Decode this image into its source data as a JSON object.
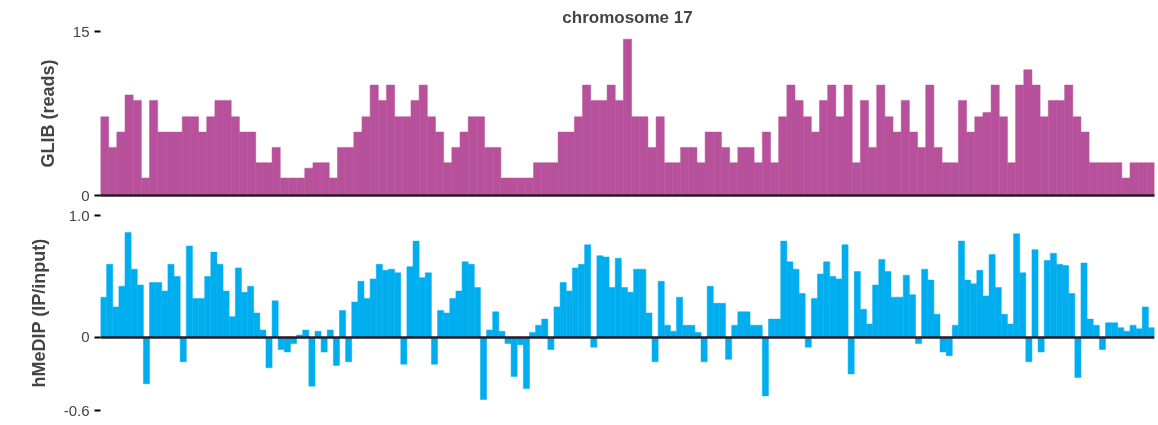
{
  "chart_data": [
    {
      "type": "bar",
      "title": "chromosome 17",
      "ylabel": "GLIB (reads)",
      "ylim": [
        0,
        15
      ],
      "yticks": [
        0,
        15
      ],
      "tick_labels": "y",
      "grid": false,
      "categories": [
        null,
        null,
        null,
        null,
        null,
        null,
        null,
        null,
        null,
        null,
        null,
        null,
        null,
        null,
        null,
        null,
        null,
        null,
        null,
        null,
        null,
        null,
        null,
        null,
        null,
        null,
        null,
        null,
        null,
        null,
        null,
        null,
        null,
        null,
        null,
        null,
        null,
        null,
        null,
        null,
        null,
        null,
        null,
        null,
        null,
        null,
        null,
        null,
        null,
        null,
        null,
        null,
        null,
        null,
        null,
        null,
        null,
        null,
        null,
        null,
        null,
        null,
        null,
        null,
        null,
        null,
        null,
        null,
        null,
        null,
        null,
        null,
        null,
        null,
        null,
        null,
        null,
        null,
        null,
        null,
        null,
        null,
        null,
        null,
        null,
        null,
        null,
        null,
        null,
        null,
        null,
        null,
        null,
        null,
        null,
        null,
        null,
        null,
        null,
        null,
        null,
        null,
        null,
        null,
        null,
        null,
        null,
        null,
        null,
        null,
        null,
        null,
        null,
        null,
        null,
        null,
        null,
        null,
        null,
        null,
        null,
        null,
        null,
        null,
        null,
        null,
        null,
        null,
        null
      ],
      "series": [
        {
          "color": "#b8519b",
          "values": [
            7.2,
            4.4,
            5.8,
            9.2,
            8.7,
            1.6,
            8.7,
            5.8,
            5.8,
            5.8,
            7.2,
            7.2,
            5.8,
            7.2,
            8.7,
            8.7,
            7.2,
            5.8,
            5.8,
            3,
            3,
            4.4,
            1.6,
            1.6,
            1.6,
            2.5,
            3,
            3,
            1.6,
            4.4,
            4.4,
            5.8,
            7.2,
            10.1,
            8.7,
            10.1,
            7.2,
            7.2,
            8.7,
            10.1,
            7.2,
            5.8,
            3,
            4.4,
            5.8,
            7.2,
            7.2,
            4.4,
            4.4,
            1.6,
            1.6,
            1.6,
            1.6,
            3,
            3,
            3,
            5.8,
            5.8,
            7.2,
            10.1,
            8.7,
            8.7,
            10.1,
            8.7,
            14.3,
            7.2,
            7.2,
            4.4,
            7.2,
            3,
            3,
            4.4,
            4.4,
            3,
            5.8,
            5.8,
            4.4,
            3,
            4.4,
            4.4,
            3,
            5.8,
            3,
            7.2,
            10.1,
            8.7,
            7.2,
            5.8,
            8.7,
            10.1,
            7.2,
            10.1,
            3,
            8.7,
            4.4,
            10.1,
            7.2,
            5.8,
            8.7,
            5.8,
            4.4,
            10.1,
            4.4,
            3,
            3,
            8.7,
            5.8,
            7.2,
            7.6,
            10.1,
            7.2,
            3,
            10.1,
            11.5,
            10.1,
            7.2,
            8.7,
            8.7,
            10.1,
            7.2,
            5.8,
            3,
            3,
            3,
            3,
            1.6,
            3,
            3,
            3
          ]
        }
      ]
    },
    {
      "type": "bar",
      "ylabel": "hMeDIP (IP/input)",
      "ylim": [
        -0.6,
        1.0
      ],
      "ref_lines": [
        {
          "axis": "y",
          "value": 0,
          "color": "#2a1a24"
        }
      ],
      "yticks": [
        {
          "value": 1.0,
          "label": "1.0"
        },
        0,
        -0.6
      ],
      "tick_labels": "y",
      "grid": false,
      "categories": [
        null,
        null,
        null,
        null,
        null,
        null,
        null,
        null,
        null,
        null,
        null,
        null,
        null,
        null,
        null,
        null,
        null,
        null,
        null,
        null,
        null,
        null,
        null,
        null,
        null,
        null,
        null,
        null,
        null,
        null,
        null,
        null,
        null,
        null,
        null,
        null,
        null,
        null,
        null,
        null,
        null,
        null,
        null,
        null,
        null,
        null,
        null,
        null,
        null,
        null,
        null,
        null,
        null,
        null,
        null,
        null,
        null,
        null,
        null,
        null,
        null,
        null,
        null,
        null,
        null,
        null,
        null,
        null,
        null,
        null,
        null,
        null,
        null,
        null,
        null,
        null,
        null,
        null,
        null,
        null,
        null,
        null,
        null,
        null,
        null,
        null,
        null,
        null,
        null,
        null,
        null,
        null,
        null,
        null,
        null,
        null,
        null,
        null,
        null,
        null,
        null,
        null,
        null,
        null,
        null,
        null,
        null,
        null,
        null,
        null,
        null,
        null,
        null,
        null,
        null,
        null,
        null,
        null,
        null,
        null,
        null,
        null,
        null,
        null,
        null,
        null,
        null,
        null,
        null,
        null,
        null,
        null,
        null,
        null,
        null,
        null,
        null,
        null,
        null,
        null,
        null,
        null,
        null,
        null,
        null,
        null,
        null,
        null,
        null,
        null,
        null,
        null,
        null,
        null,
        null,
        null,
        null,
        null,
        null,
        null,
        null,
        null,
        null,
        null,
        null,
        null,
        null,
        null,
        null,
        null,
        null,
        null
      ],
      "series": [
        {
          "color": "#00aeef",
          "values": [
            0.33,
            0.6,
            0.25,
            0.42,
            0.86,
            0.56,
            0.43,
            -0.38,
            0.45,
            0.45,
            0.38,
            0.6,
            0.5,
            -0.2,
            0.75,
            0.32,
            0.32,
            0.5,
            0.7,
            0.6,
            0.38,
            0.17,
            0.57,
            0.37,
            0.42,
            0.2,
            0.06,
            -0.25,
            0.3,
            -0.1,
            -0.12,
            -0.05,
            0.02,
            0.06,
            -0.4,
            0.05,
            -0.12,
            0.06,
            -0.23,
            0.22,
            -0.2,
            0.29,
            0.46,
            0.32,
            0.48,
            0.6,
            0.55,
            0.56,
            0.53,
            -0.22,
            0.58,
            0.79,
            0.49,
            0.53,
            -0.22,
            0.22,
            0.2,
            0.32,
            0.38,
            0.62,
            0.6,
            0.41,
            -0.51,
            0.06,
            0.21,
            0.05,
            -0.05,
            -0.32,
            -0.06,
            -0.42,
            0.04,
            0.1,
            0.15,
            -0.1,
            0.25,
            0.45,
            0.38,
            0.57,
            0.6,
            0.76,
            -0.08,
            0.67,
            0.66,
            0.41,
            0.65,
            0.41,
            0.37,
            0.56,
            0.56,
            0.2,
            -0.2,
            0.46,
            0.1,
            0.05,
            0.33,
            0.1,
            0.1,
            0.04,
            -0.2,
            0.42,
            0.28,
            0.28,
            -0.18,
            0.1,
            0.21,
            0.21,
            0.1,
            0.1,
            -0.48,
            0.15,
            0.15,
            0.79,
            0.62,
            0.56,
            0.36,
            -0.08,
            0.32,
            0.52,
            0.62,
            0.5,
            0.48,
            0.76,
            -0.3,
            0.54,
            0.23,
            0.11,
            0.43,
            0.64,
            0.54,
            0.33,
            0.33,
            0.51,
            0.35,
            -0.05,
            0.56,
            0.47,
            0.19,
            -0.12,
            -0.15,
            0.1,
            0.79,
            0.47,
            0.44,
            0.55,
            0.34,
            0.68,
            0.41,
            0.19,
            0.11,
            0.85,
            0.53,
            -0.2,
            0.72,
            -0.12,
            0.63,
            0.69,
            0.6,
            0.59,
            0.36,
            -0.33,
            0.61,
            0.15,
            0.1,
            -0.1,
            0.12,
            0.12,
            0.08,
            0.05,
            0.1,
            0.07,
            0.25,
            0.08
          ]
        }
      ]
    }
  ]
}
